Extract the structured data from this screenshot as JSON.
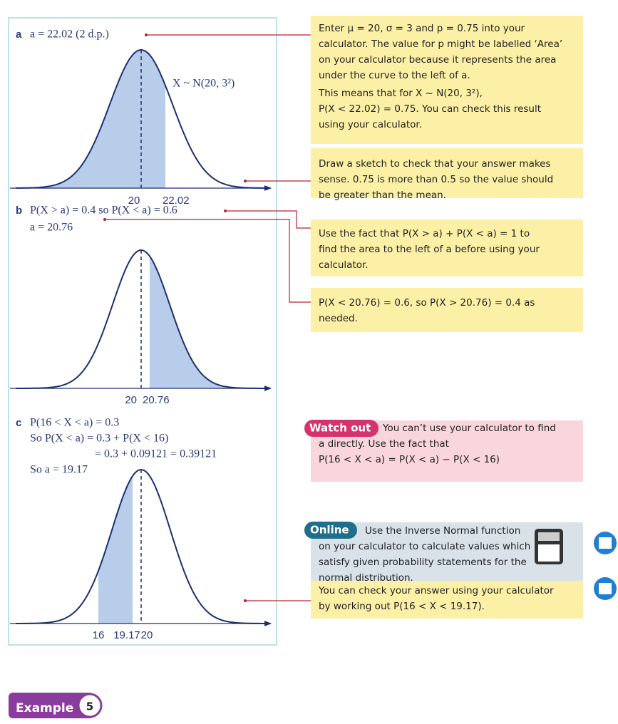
{
  "part_a": {
    "label": "a",
    "line": "a = 22.02 (2 d.p.)",
    "curve_label": "X ~ N(20, 3²)",
    "axis_labels": [
      "20",
      "22.02"
    ]
  },
  "part_b": {
    "label": "b",
    "lines": [
      "P(X > a) = 0.4 so P(X < a) = 0.6",
      "a = 20.76"
    ],
    "axis_labels": [
      "20",
      "20.76"
    ]
  },
  "part_c": {
    "label": "c",
    "lines": [
      "P(16 < X < a) = 0.3",
      "So P(X < a) = 0.3 + P(X < 16)",
      "= 0.3 + 0.09121 = 0.39121",
      "So a = 19.17"
    ],
    "axis_labels": [
      "16",
      "19.17",
      "20"
    ]
  },
  "notes": [
    {
      "lines": [
        "Enter μ = 20, σ = 3 and p = 0.75 into your",
        "calculator. The value for p might be labelled ‘Area’",
        "on your calculator because it represents the area",
        "under the curve to the left of a.",
        "This means that for X ~ N(20, 3²),",
        "P(X < 22.02) = 0.75. You can check this result",
        "using your calculator."
      ]
    },
    {
      "lines": [
        "Draw a sketch to check that your answer makes",
        "sense. 0.75 is more than 0.5 so the value should",
        "be greater than the mean."
      ]
    },
    {
      "lines": [
        "Use the fact that P(X > a) + P(X < a) = 1 to",
        "find the area to the left of a before using your",
        "calculator."
      ]
    },
    {
      "lines": [
        "P(X < 20.76) = 0.6, so P(X > 20.76) = 0.4 as",
        "needed."
      ]
    },
    {
      "lines": [
        "You can check your answer using your calculator",
        "by working out P(16 < X < 19.17)."
      ]
    }
  ],
  "watch_out": {
    "title": "Watch out",
    "lines": [
      "You can’t use your calculator to find",
      "a directly. Use the fact that",
      "P(16 < X < a) = P(X < a) − P(X < 16)"
    ]
  },
  "online": {
    "title": "Online",
    "lines": [
      "Use the Inverse Normal function",
      "on your calculator to calculate values which",
      "satisfy given probability statements for the",
      "normal distribution."
    ]
  },
  "example": {
    "label": "Example",
    "number": "5"
  }
}
